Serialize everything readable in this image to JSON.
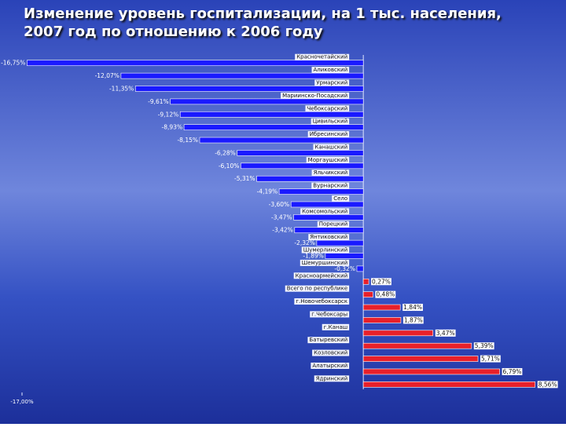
{
  "chart_data": {
    "type": "bar",
    "orientation": "horizontal",
    "title": "Изменение уровень госпитализации, на 1 тыс. населения, 2007 год по отношению к 2006 году",
    "categories": [
      "Красночетайский",
      "Аликовский",
      "Урмарский",
      "Мариинско-Посадский",
      "Чебоксарский",
      "Цивильский",
      "Ибресинский",
      "Канашский",
      "Моргаушский",
      "Яльчикский",
      "Вурнарский",
      "Село",
      "Комсомольский",
      "Порецкий",
      "Янтиковский",
      "Шумерлинский",
      "Шемуршинский",
      "Красноармейский",
      "Всего по республике",
      "г.Новочебоксарск",
      "г.Чебоксары",
      "г.Канаш",
      "Батыревский",
      "Козловский",
      "Алатырский",
      "Ядринский"
    ],
    "values": [
      -16.75,
      -12.07,
      -11.35,
      -9.61,
      -9.12,
      -8.93,
      -8.15,
      -6.28,
      -6.1,
      -5.31,
      -4.19,
      -3.6,
      -3.47,
      -3.42,
      -2.32,
      -1.89,
      -0.32,
      0.27,
      0.48,
      1.84,
      1.87,
      3.47,
      5.39,
      5.71,
      6.79,
      8.56
    ],
    "value_labels": [
      "-16,75%",
      "-12,07%",
      "-11,35%",
      "-9,61%",
      "-9,12%",
      "-8,93%",
      "-8,15%",
      "-6,28%",
      "-6,10%",
      "-5,31%",
      "-4,19%",
      "-3,60%",
      "-3,47%",
      "-3,42%",
      "-2,32%",
      "-1,89%",
      "-0,32%",
      "0,27%",
      "0,48%",
      "1,84%",
      "1,87%",
      "3,47%",
      "5,39%",
      "5,71%",
      "6,79%",
      "8,56%"
    ],
    "negative_color": "#1a1aff",
    "positive_color": "#e8202a",
    "xlim": [
      -17,
      9
    ],
    "xticks": [
      {
        "value": -17,
        "label": "-17,00%"
      }
    ]
  }
}
